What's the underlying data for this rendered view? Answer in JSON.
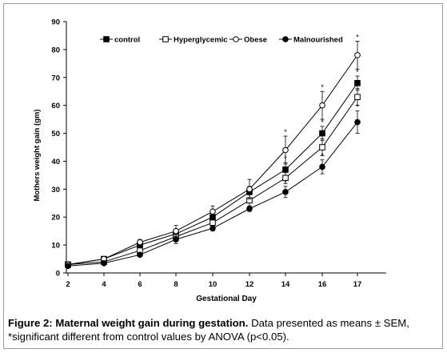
{
  "chart_data": {
    "type": "line",
    "title": "",
    "xlabel": "Gestational Day",
    "ylabel": "Mothers weight gain (gm)",
    "categories": [
      "2",
      "4",
      "6",
      "8",
      "10",
      "12",
      "14",
      "16",
      "17"
    ],
    "ylim": [
      0,
      90
    ],
    "yticks": [
      0,
      10,
      20,
      30,
      40,
      50,
      60,
      70,
      80,
      90
    ],
    "grid": false,
    "legend": "top-left",
    "series": [
      {
        "name": "control",
        "marker": "filled-square",
        "values": [
          3,
          5,
          10,
          14,
          20,
          29,
          37,
          50,
          68
        ],
        "err": [
          0.5,
          0.5,
          1,
          1.5,
          2,
          2,
          2.5,
          2.5,
          2.5
        ]
      },
      {
        "name": "Hyperglycemic",
        "marker": "open-square",
        "values": [
          3,
          4,
          8,
          13,
          18,
          26,
          34,
          45,
          63
        ],
        "err": [
          0.5,
          0.5,
          1,
          1.5,
          1.5,
          2,
          2,
          3,
          3
        ]
      },
      {
        "name": "Obese",
        "marker": "open-circle",
        "values": [
          3,
          5,
          11,
          15,
          22,
          30,
          44,
          60,
          78
        ],
        "err": [
          0.5,
          0.5,
          1,
          2,
          2,
          3.5,
          5,
          5,
          5
        ]
      },
      {
        "name": "Malnourished",
        "marker": "filled-circle",
        "values": [
          2.5,
          3.5,
          6.5,
          12,
          16,
          23,
          29,
          38,
          54
        ],
        "err": [
          0.5,
          0.5,
          0.5,
          1.5,
          1,
          1,
          2,
          2.5,
          4
        ]
      }
    ],
    "annotations": [
      {
        "text": "*",
        "x": "14",
        "series": "Obese"
      },
      {
        "text": "*",
        "x": "14",
        "series": "control"
      },
      {
        "text": "*",
        "x": "14",
        "series": "Hyperglycemic"
      },
      {
        "text": "*",
        "x": "14",
        "series": "Malnourished"
      },
      {
        "text": "*",
        "x": "16",
        "series": "Obese"
      },
      {
        "text": "*",
        "x": "16",
        "series": "control"
      },
      {
        "text": "*",
        "x": "16",
        "series": "Hyperglycemic"
      },
      {
        "text": "*",
        "x": "16",
        "series": "Malnourished"
      },
      {
        "text": "*",
        "x": "17",
        "series": "Obese"
      },
      {
        "text": "*",
        "x": "17",
        "series": "control"
      },
      {
        "text": "*",
        "x": "17",
        "series": "Hyperglycemic"
      },
      {
        "text": "*",
        "x": "17",
        "series": "Malnourished"
      }
    ]
  },
  "caption": {
    "label": "Figure 2: Maternal weight gain during gestation.",
    "text": " Data presented as means ± SEM, *significant different from control values by ANOVA (p<0.05)."
  }
}
